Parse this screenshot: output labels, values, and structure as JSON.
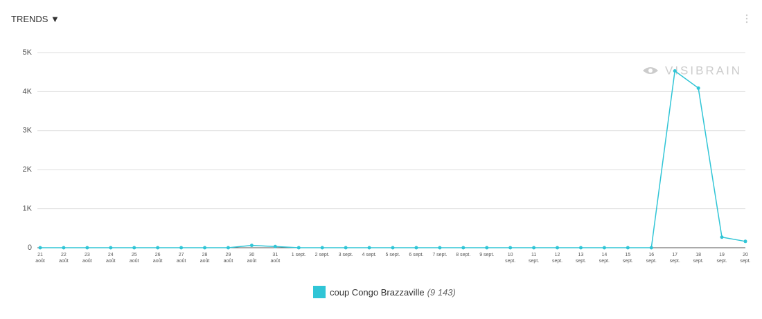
{
  "header": {
    "title": "TRENDS ▼"
  },
  "chart_data": {
    "type": "line",
    "watermark": "VISIBRAIN",
    "categories": [
      "21\naoût",
      "22\naoût",
      "23\naoût",
      "24\naoût",
      "25\naoût",
      "26\naoût",
      "27\naoût",
      "28\naoût",
      "29\naoût",
      "30\naoût",
      "31\naoût",
      "1 sept.",
      "2 sept.",
      "3 sept.",
      "4 sept.",
      "5 sept.",
      "6 sept.",
      "7 sept.",
      "8 sept.",
      "9 sept.",
      "10\nsept.",
      "11\nsept.",
      "12\nsept.",
      "13\nsept.",
      "14\nsept.",
      "15\nsept.",
      "16\nsept.",
      "17\nsept.",
      "18\nsept.",
      "19\nsept.",
      "20\nsept."
    ],
    "series": [
      {
        "name": "coup Congo Brazzaville",
        "color": "#30c5d6",
        "total": {
          "value": 9143,
          "label": "(9 143)"
        },
        "values": [
          0,
          0,
          0,
          0,
          0,
          0,
          0,
          0,
          0,
          60,
          30,
          0,
          0,
          0,
          0,
          0,
          0,
          0,
          0,
          0,
          0,
          0,
          0,
          0,
          0,
          0,
          0,
          4530,
          4090,
          270,
          163
        ]
      }
    ],
    "ylim": [
      0,
      5000
    ],
    "yticks": [
      0,
      {
        "value": 1000,
        "label": "1K"
      },
      {
        "value": 2000,
        "label": "2K"
      },
      {
        "value": 3000,
        "label": "3K"
      },
      {
        "value": 4000,
        "label": "4K"
      },
      {
        "value": 5000,
        "label": "5K"
      }
    ],
    "grid": true
  }
}
